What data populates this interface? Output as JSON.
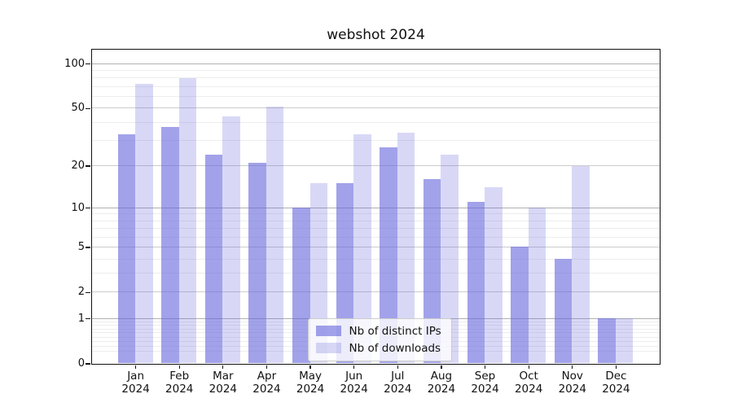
{
  "chart_data": {
    "type": "bar",
    "title": "webshot 2024",
    "categories": [
      "Jan",
      "Feb",
      "Mar",
      "Apr",
      "May",
      "Jun",
      "Jul",
      "Aug",
      "Sep",
      "Oct",
      "Nov",
      "Dec"
    ],
    "year_label": "2024",
    "series": [
      {
        "name": "Nb of distinct IPs",
        "color": "rgba(100,100,220,0.6)",
        "values": [
          33,
          37,
          24,
          21,
          10,
          15,
          27,
          16,
          11,
          5,
          4,
          1
        ]
      },
      {
        "name": "Nb of downloads",
        "color": "rgba(100,100,220,0.25)",
        "values": [
          73,
          80,
          44,
          51,
          15,
          33,
          34,
          24,
          14,
          10,
          20,
          1
        ]
      }
    ],
    "xlabel": "",
    "ylabel": "",
    "yscale": "log1p",
    "ylim": [
      0,
      125
    ],
    "yticks": [
      0,
      1,
      2,
      5,
      10,
      20,
      50,
      100
    ],
    "minor_gridlines": [
      0.2,
      0.3,
      0.4,
      0.5,
      0.6,
      0.7,
      0.8,
      0.9,
      3,
      4,
      6,
      7,
      8,
      9,
      30,
      40,
      60,
      70,
      80,
      90
    ],
    "grid": true,
    "legend_position": "inside-bottom-center"
  },
  "colors": {
    "bar_dark": "rgba(100,100,220,0.6)",
    "bar_light": "rgba(100,100,220,0.25)",
    "decade_grid": "#b0b0b0",
    "mid_grid": "#cccccc",
    "minor_grid": "#ededed",
    "spine": "#111111"
  }
}
